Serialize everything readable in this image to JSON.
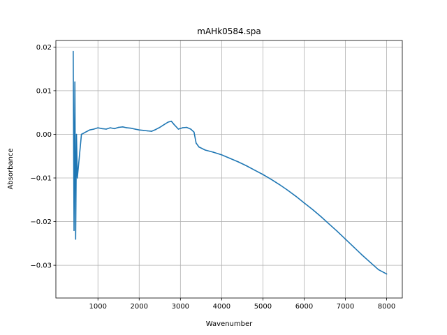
{
  "chart_data": {
    "type": "line",
    "title": "mAHk0584.spa",
    "xlabel": "Wavenumber",
    "ylabel": "Absorbance",
    "xlim": [
      -20,
      8380
    ],
    "ylim": [
      -0.0375,
      0.0215
    ],
    "xticks": [
      1000,
      2000,
      3000,
      4000,
      5000,
      6000,
      7000,
      8000
    ],
    "xtick_labels": [
      "1000",
      "2000",
      "3000",
      "4000",
      "5000",
      "6000",
      "7000",
      "8000"
    ],
    "yticks": [
      0.02,
      0.01,
      0.0,
      -0.01,
      -0.02,
      -0.03
    ],
    "ytick_labels": [
      "0.02",
      "0.01",
      "0.00",
      "−0.01",
      "−0.02",
      "−0.03"
    ],
    "grid": true,
    "legend": "none",
    "series": [
      {
        "color": "#1f77b4",
        "x": [
          400,
          420,
          440,
          460,
          480,
          500,
          550,
          600,
          700,
          800,
          900,
          1000,
          1100,
          1200,
          1300,
          1400,
          1500,
          1600,
          1700,
          1800,
          1900,
          2000,
          2100,
          2200,
          2300,
          2400,
          2500,
          2600,
          2700,
          2780,
          2850,
          2950,
          3050,
          3150,
          3250,
          3330,
          3380,
          3450,
          3600,
          3800,
          4000,
          4200,
          4400,
          4600,
          4800,
          5000,
          5200,
          5400,
          5600,
          5800,
          6000,
          6200,
          6400,
          6600,
          6800,
          7000,
          7200,
          7400,
          7600,
          7800,
          8000
        ],
        "y": [
          0.019,
          -0.022,
          0.012,
          -0.024,
          0.0,
          -0.01,
          -0.005,
          0.0,
          0.0005,
          0.001,
          0.0012,
          0.0015,
          0.0013,
          0.0012,
          0.0015,
          0.0013,
          0.0016,
          0.0017,
          0.0015,
          0.0014,
          0.0012,
          0.001,
          0.0009,
          0.0008,
          0.0007,
          0.0011,
          0.0016,
          0.0022,
          0.0028,
          0.003,
          0.0022,
          0.0012,
          0.0015,
          0.0016,
          0.0012,
          0.0005,
          -0.002,
          -0.0029,
          -0.0036,
          -0.0041,
          -0.0047,
          -0.0055,
          -0.0063,
          -0.0072,
          -0.0082,
          -0.0092,
          -0.0103,
          -0.0115,
          -0.0128,
          -0.0142,
          -0.0157,
          -0.0172,
          -0.0188,
          -0.0205,
          -0.0222,
          -0.024,
          -0.0258,
          -0.0276,
          -0.0293,
          -0.031,
          -0.032
        ]
      }
    ]
  }
}
